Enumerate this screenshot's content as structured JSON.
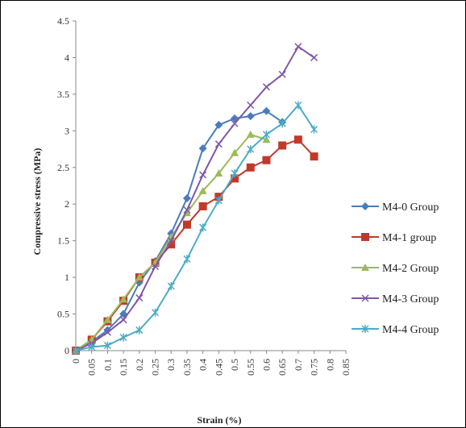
{
  "chart_data": {
    "type": "line",
    "xlabel": "Strain (%)",
    "ylabel": "Compressive stress (MPa)",
    "xlim": [
      0,
      0.85
    ],
    "ylim": [
      0,
      4.5
    ],
    "x_ticks": [
      "0",
      "0.05",
      "0.1",
      "0.15",
      "0.2",
      "0.25",
      "0.3",
      "0.35",
      "0.4",
      "0.45",
      "0.5",
      "0.55",
      "0.6",
      "0.65",
      "0.7",
      "0.75",
      "0.8",
      "0.85"
    ],
    "y_ticks": [
      "0",
      "0.5",
      "1",
      "1.5",
      "2",
      "2.5",
      "3",
      "3.5",
      "4",
      "4.5"
    ],
    "grid": false,
    "legend_position": "right",
    "series": [
      {
        "name": "M4-0 Group",
        "color": "#4a7bbd",
        "marker": "diamond",
        "x": [
          0,
          0.05,
          0.1,
          0.15,
          0.2,
          0.25,
          0.3,
          0.35,
          0.4,
          0.45,
          0.5,
          0.55,
          0.6,
          0.65
        ],
        "y": [
          0,
          0.12,
          0.28,
          0.5,
          0.93,
          1.22,
          1.6,
          2.08,
          2.76,
          3.08,
          3.17,
          3.2,
          3.27,
          3.12
        ]
      },
      {
        "name": "M4-1 group",
        "color": "#c0392b",
        "marker": "square",
        "x": [
          0,
          0.05,
          0.1,
          0.15,
          0.2,
          0.25,
          0.3,
          0.35,
          0.4,
          0.45,
          0.5,
          0.55,
          0.6,
          0.65,
          0.7,
          0.75
        ],
        "y": [
          0,
          0.15,
          0.4,
          0.68,
          1.0,
          1.2,
          1.45,
          1.72,
          1.97,
          2.1,
          2.35,
          2.5,
          2.6,
          2.8,
          2.88,
          2.65
        ]
      },
      {
        "name": "M4-2 Group",
        "color": "#9bbb59",
        "marker": "triangle",
        "x": [
          0,
          0.05,
          0.1,
          0.15,
          0.2,
          0.25,
          0.3,
          0.35,
          0.4,
          0.45,
          0.5,
          0.55,
          0.6
        ],
        "y": [
          0,
          0.15,
          0.42,
          0.7,
          1.0,
          1.2,
          1.55,
          1.88,
          2.18,
          2.42,
          2.7,
          2.95,
          2.88
        ]
      },
      {
        "name": "M4-3 Group",
        "color": "#7e57a8",
        "marker": "x",
        "x": [
          0,
          0.05,
          0.1,
          0.15,
          0.2,
          0.25,
          0.3,
          0.35,
          0.4,
          0.45,
          0.5,
          0.55,
          0.6,
          0.65,
          0.7,
          0.75
        ],
        "y": [
          0,
          0.1,
          0.25,
          0.42,
          0.72,
          1.15,
          1.5,
          1.92,
          2.4,
          2.82,
          3.1,
          3.35,
          3.6,
          3.77,
          4.15,
          4.0
        ]
      },
      {
        "name": "M4-4 Group",
        "color": "#4bacc6",
        "marker": "star",
        "x": [
          0,
          0.05,
          0.1,
          0.15,
          0.2,
          0.25,
          0.3,
          0.35,
          0.4,
          0.45,
          0.5,
          0.55,
          0.6,
          0.65,
          0.7,
          0.75
        ],
        "y": [
          0,
          0.05,
          0.07,
          0.18,
          0.28,
          0.52,
          0.88,
          1.25,
          1.68,
          2.05,
          2.42,
          2.75,
          2.95,
          3.1,
          3.35,
          3.02
        ]
      }
    ]
  }
}
